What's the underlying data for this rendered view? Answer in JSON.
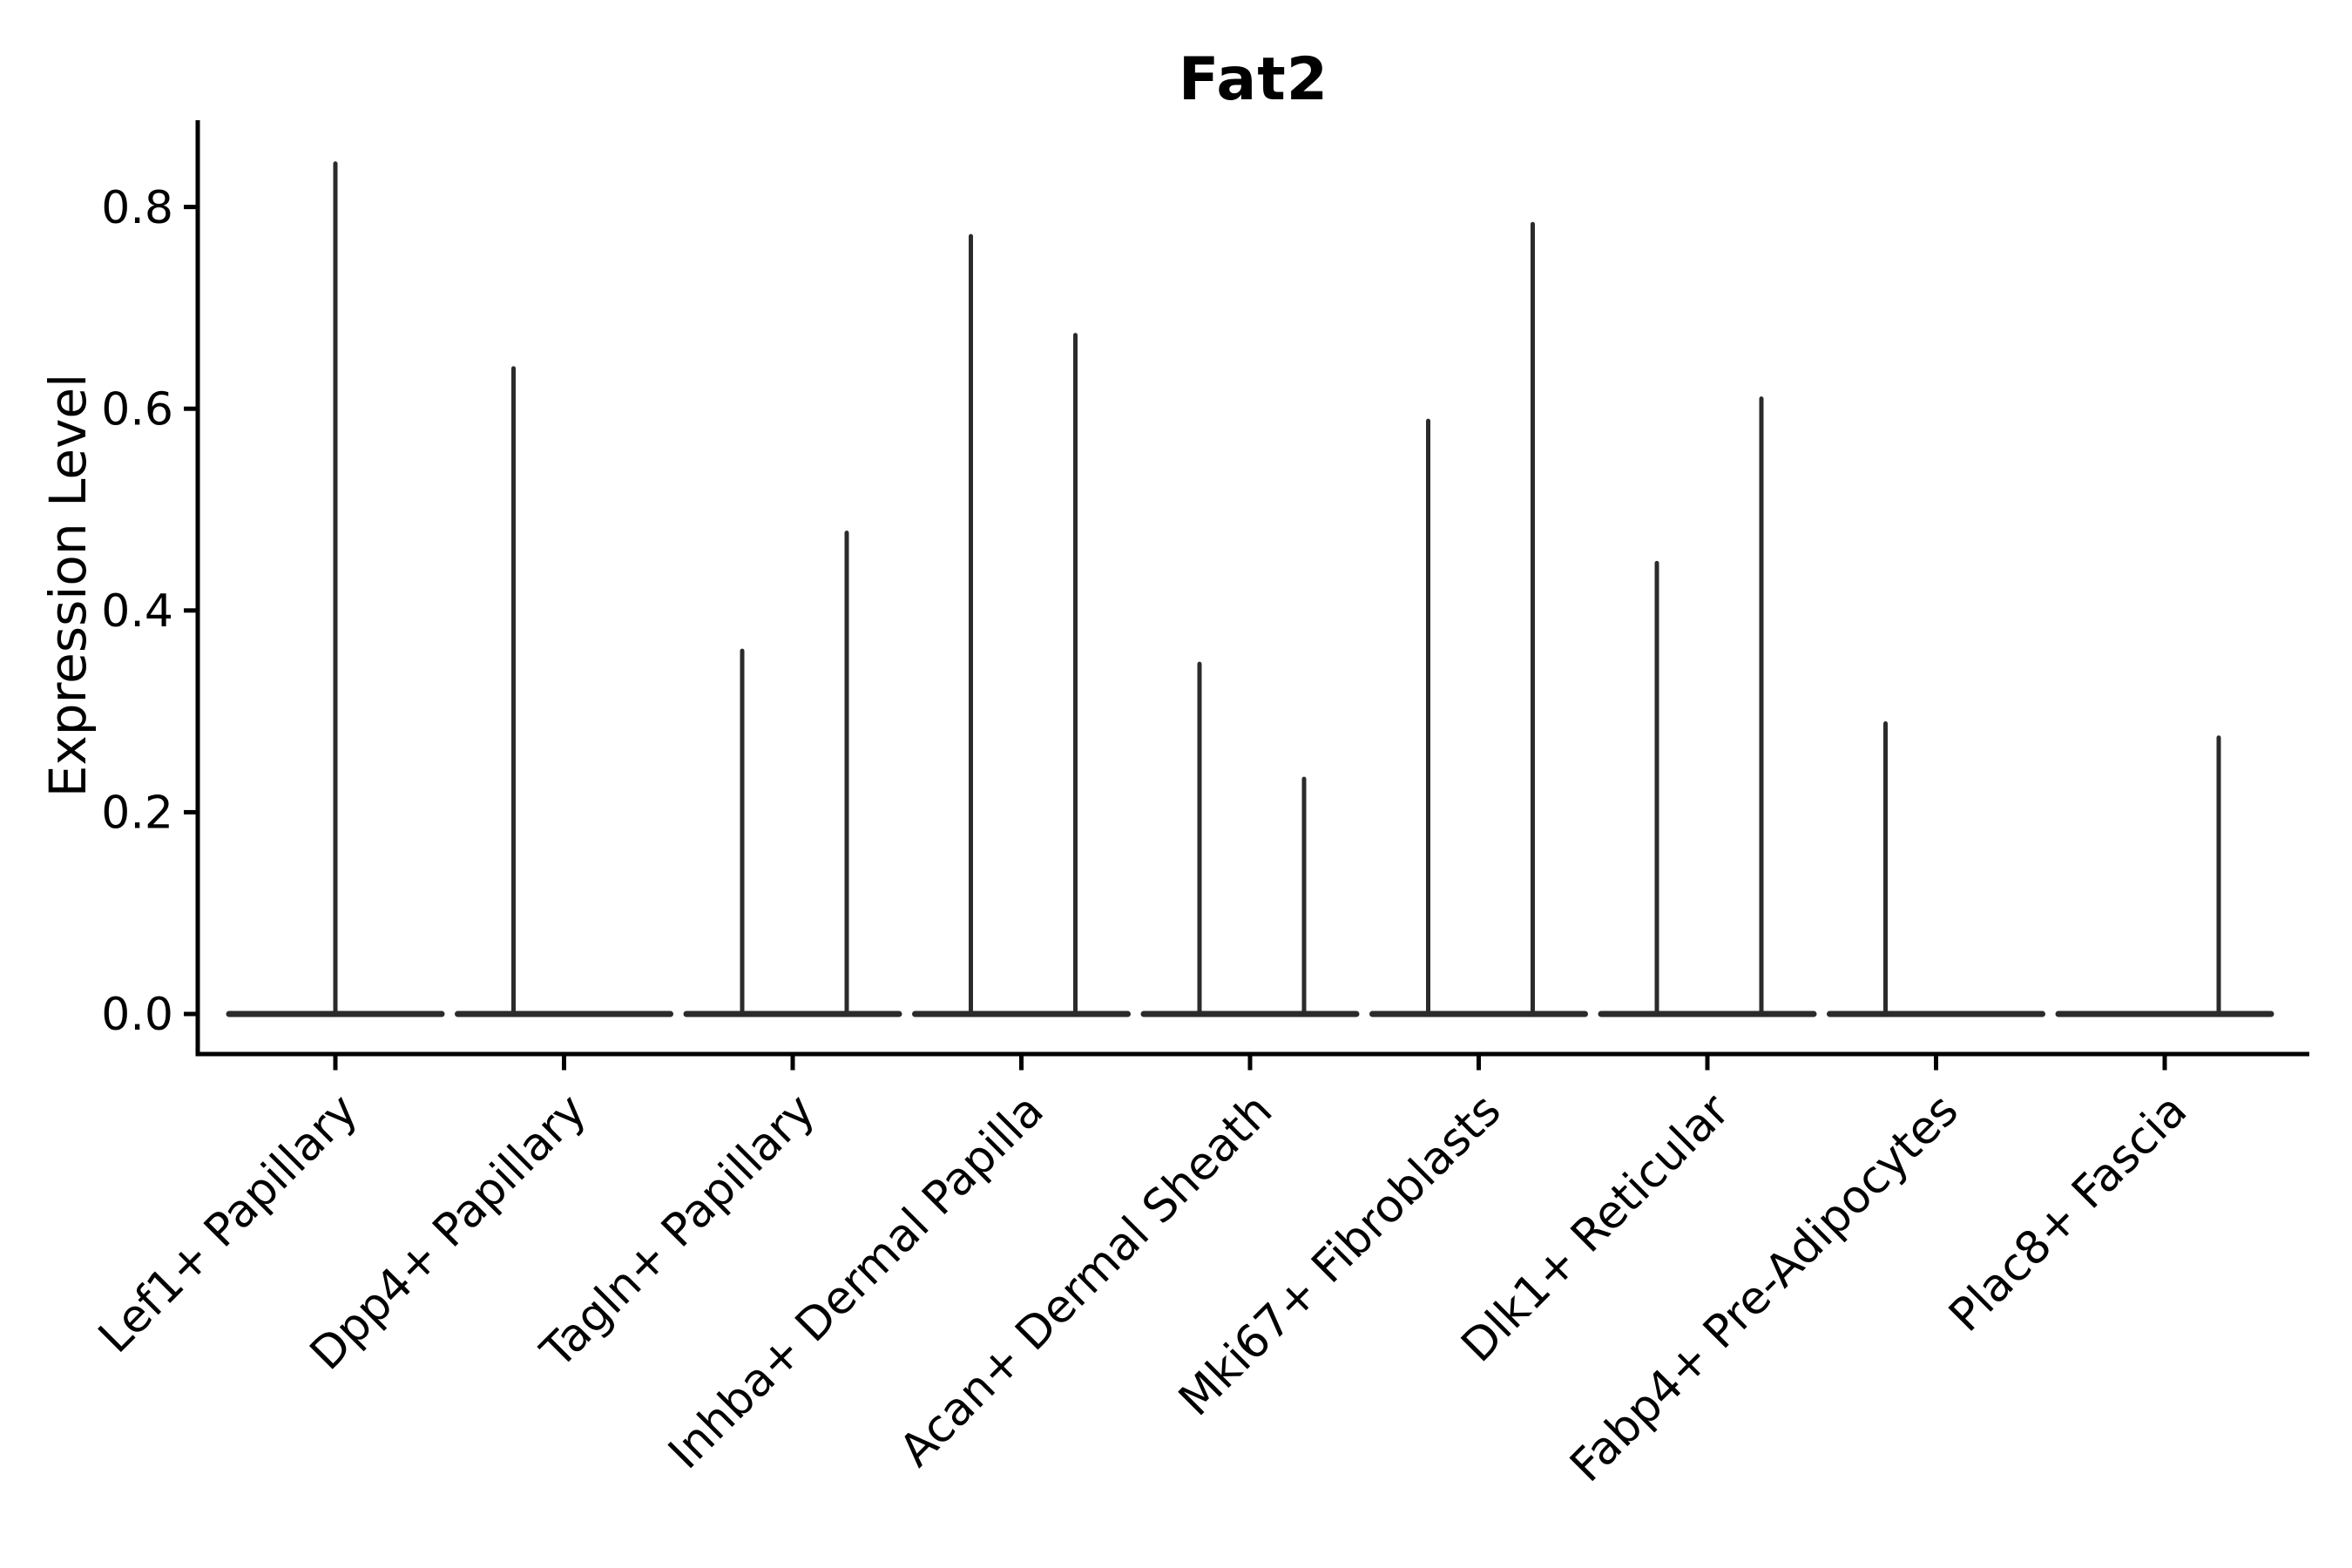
{
  "chart_data": {
    "type": "violin",
    "title": "Fat2",
    "ylabel": "Expression Level",
    "xlabel": "",
    "ylim": [
      0.0,
      0.88
    ],
    "yticks": [
      0.0,
      0.2,
      0.4,
      0.6,
      0.8
    ],
    "ytick_labels": [
      "0.0",
      "0.2",
      "0.4",
      "0.6",
      "0.8"
    ],
    "grid": false,
    "legend": "none",
    "categories": [
      "Lef1+ Papillary",
      "Dpp4+ Papillary",
      "Tagln+ Papillary",
      "Inhba+ Dermal Papilla",
      "Acan+ Dermal Sheath",
      "Mki67+ Fibroblasts",
      "Dlk1+ Reticular",
      "Fabp4+ Pre-Adipocytes",
      "Plac8+ Fascia"
    ],
    "description": "Violin plot of Fat2 expression; each cluster shows a wide flattened density at 0 with narrow spikes rising to the maximum expression of sub-violins (left/right halves of each cluster slot).",
    "baseline_value": 0.0,
    "violins": [
      {
        "category": "Lef1+ Papillary",
        "spikes": [
          {
            "position": "center",
            "max": 0.843
          }
        ]
      },
      {
        "category": "Dpp4+ Papillary",
        "spikes": [
          {
            "position": "left",
            "max": 0.64
          }
        ]
      },
      {
        "category": "Tagln+ Papillary",
        "spikes": [
          {
            "position": "left",
            "max": 0.36
          },
          {
            "position": "right",
            "max": 0.477
          }
        ]
      },
      {
        "category": "Inhba+ Dermal Papilla",
        "spikes": [
          {
            "position": "left",
            "max": 0.771
          },
          {
            "position": "right",
            "max": 0.673
          }
        ]
      },
      {
        "category": "Acan+ Dermal Sheath",
        "spikes": [
          {
            "position": "left",
            "max": 0.347
          },
          {
            "position": "right",
            "max": 0.233
          }
        ]
      },
      {
        "category": "Mki67+ Fibroblasts",
        "spikes": [
          {
            "position": "left",
            "max": 0.588
          },
          {
            "position": "right",
            "max": 0.783
          }
        ]
      },
      {
        "category": "Dlk1+ Reticular",
        "spikes": [
          {
            "position": "left",
            "max": 0.447
          },
          {
            "position": "right",
            "max": 0.61
          }
        ]
      },
      {
        "category": "Fabp4+ Pre-Adipocytes",
        "spikes": [
          {
            "position": "left",
            "max": 0.288
          }
        ]
      },
      {
        "category": "Plac8+ Fascia",
        "spikes": [
          {
            "position": "right",
            "max": 0.274
          }
        ]
      }
    ],
    "colors": {
      "violin": "#2b2b2b",
      "axis": "#000000",
      "text": "#000000",
      "background": "#ffffff"
    }
  }
}
